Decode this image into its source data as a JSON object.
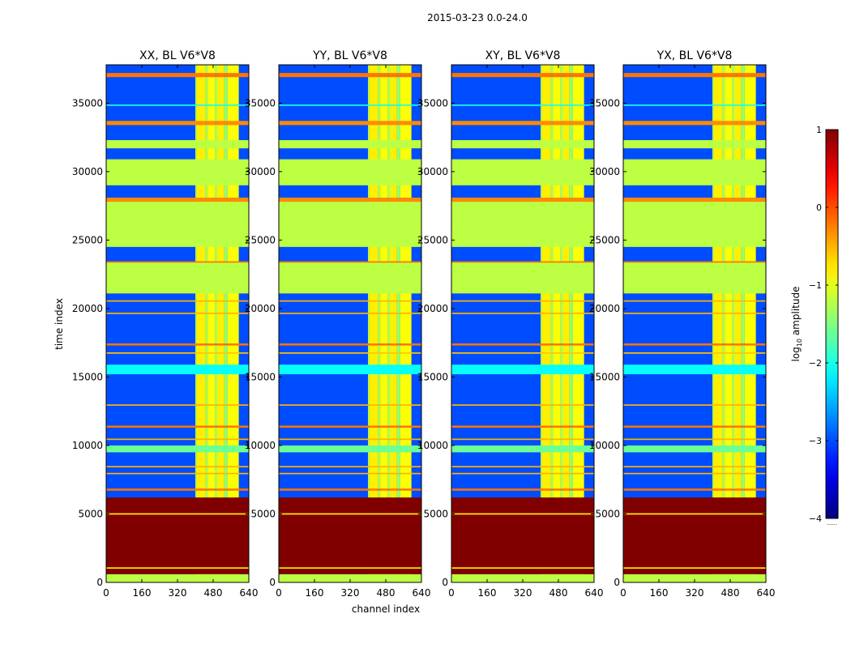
{
  "figure_title": "2015-03-23 0.0-24.0",
  "chart_data": {
    "type": "heatmap",
    "xlabel": "channel index",
    "ylabel": "time index",
    "xlim": [
      0,
      640
    ],
    "ylim": [
      0,
      37800
    ],
    "xticks": [
      0,
      160,
      320,
      480,
      640
    ],
    "yticks": [
      0,
      5000,
      10000,
      15000,
      20000,
      25000,
      30000,
      35000
    ],
    "panels": [
      {
        "title": "XX, BL V6*V8",
        "polarization": "XX"
      },
      {
        "title": "YY, BL V6*V8",
        "polarization": "YY"
      },
      {
        "title": "XY, BL V6*V8",
        "polarization": "XY"
      },
      {
        "title": "YX, BL V6*V8",
        "polarization": "YX"
      }
    ],
    "colorbar": {
      "label_prefix": "log",
      "label_sub": "10",
      "label_suffix": " amplitude",
      "vmin": -4,
      "vmax": 1,
      "ticks": [
        1,
        0,
        -1,
        -2,
        -3,
        -4
      ],
      "tick_labels": [
        "1",
        "0",
        "−1",
        "−2",
        "−3",
        "−4"
      ],
      "colormap": "jet",
      "under_text": "......"
    },
    "background_level": -3.0,
    "horizontal_bands": [
      {
        "t0": 0,
        "t1": 600,
        "value": -1.2
      },
      {
        "t0": 600,
        "t1": 6200,
        "value": 1.0
      },
      {
        "t0": 1000,
        "t1": 1100,
        "value": -0.8
      },
      {
        "t0": 4950,
        "t1": 5050,
        "value": -0.8
      },
      {
        "t0": 6700,
        "t1": 6850,
        "value": -0.2
      },
      {
        "t0": 7900,
        "t1": 8000,
        "value": -0.5
      },
      {
        "t0": 8400,
        "t1": 8500,
        "value": -0.5
      },
      {
        "t0": 9500,
        "t1": 10000,
        "value": -1.6
      },
      {
        "t0": 10400,
        "t1": 10500,
        "value": -0.5
      },
      {
        "t0": 11300,
        "t1": 11450,
        "value": -0.2
      },
      {
        "t0": 12900,
        "t1": 13000,
        "value": -0.5
      },
      {
        "t0": 15200,
        "t1": 15900,
        "value": -2.1
      },
      {
        "t0": 16700,
        "t1": 16800,
        "value": -0.6
      },
      {
        "t0": 17300,
        "t1": 17450,
        "value": -0.2
      },
      {
        "t0": 19600,
        "t1": 19700,
        "value": -0.5
      },
      {
        "t0": 20500,
        "t1": 20600,
        "value": -0.5
      },
      {
        "t0": 21100,
        "t1": 23400,
        "value": -1.2
      },
      {
        "t0": 23350,
        "t1": 23450,
        "value": -0.2
      },
      {
        "t0": 24500,
        "t1": 27800,
        "value": -1.2
      },
      {
        "t0": 27800,
        "t1": 28100,
        "value": -0.3
      },
      {
        "t0": 29000,
        "t1": 30900,
        "value": -1.2
      },
      {
        "t0": 31700,
        "t1": 32300,
        "value": -1.2
      },
      {
        "t0": 33400,
        "t1": 33700,
        "value": -0.3
      },
      {
        "t0": 34800,
        "t1": 34900,
        "value": -2.0
      },
      {
        "t0": 36900,
        "t1": 37200,
        "value": -0.2
      }
    ],
    "vertical_stripes": [
      {
        "c0": 400,
        "c1": 405,
        "value": -1.3
      },
      {
        "c0": 405,
        "c1": 445,
        "value": -0.8
      },
      {
        "c0": 445,
        "c1": 455,
        "value": -1.3
      },
      {
        "c0": 455,
        "c1": 490,
        "value": -0.9
      },
      {
        "c0": 490,
        "c1": 500,
        "value": -1.3
      },
      {
        "c0": 500,
        "c1": 530,
        "value": -0.8
      },
      {
        "c0": 530,
        "c1": 545,
        "value": -1.4
      },
      {
        "c0": 545,
        "c1": 595,
        "value": -0.9
      }
    ]
  }
}
